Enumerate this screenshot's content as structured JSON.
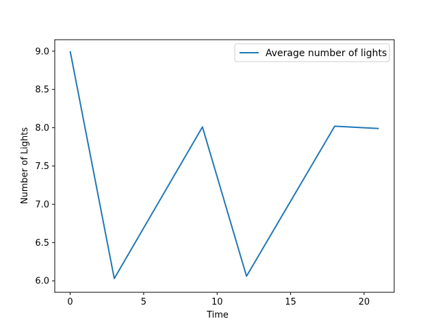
{
  "chart_data": {
    "type": "line",
    "title": "",
    "xlabel": "Time",
    "ylabel": "Number of Lights",
    "x": [
      0,
      3,
      9,
      12,
      18,
      21
    ],
    "series": [
      {
        "name": "Average number of lights",
        "values": [
          9.0,
          6.03,
          8.01,
          6.06,
          8.02,
          7.99
        ],
        "color": "#1f77b4"
      }
    ],
    "xlim": [
      -1.05,
      22.05
    ],
    "ylim": [
      5.85,
      9.15
    ],
    "xticks": [
      0,
      5,
      10,
      15,
      20
    ],
    "xtick_labels": [
      "0",
      "5",
      "10",
      "15",
      "20"
    ],
    "yticks": [
      6.0,
      6.5,
      7.0,
      7.5,
      8.0,
      8.5,
      9.0
    ],
    "ytick_labels": [
      "6.0",
      "6.5",
      "7.0",
      "7.5",
      "8.0",
      "8.5",
      "9.0"
    ],
    "grid": false,
    "legend": "top-right"
  }
}
